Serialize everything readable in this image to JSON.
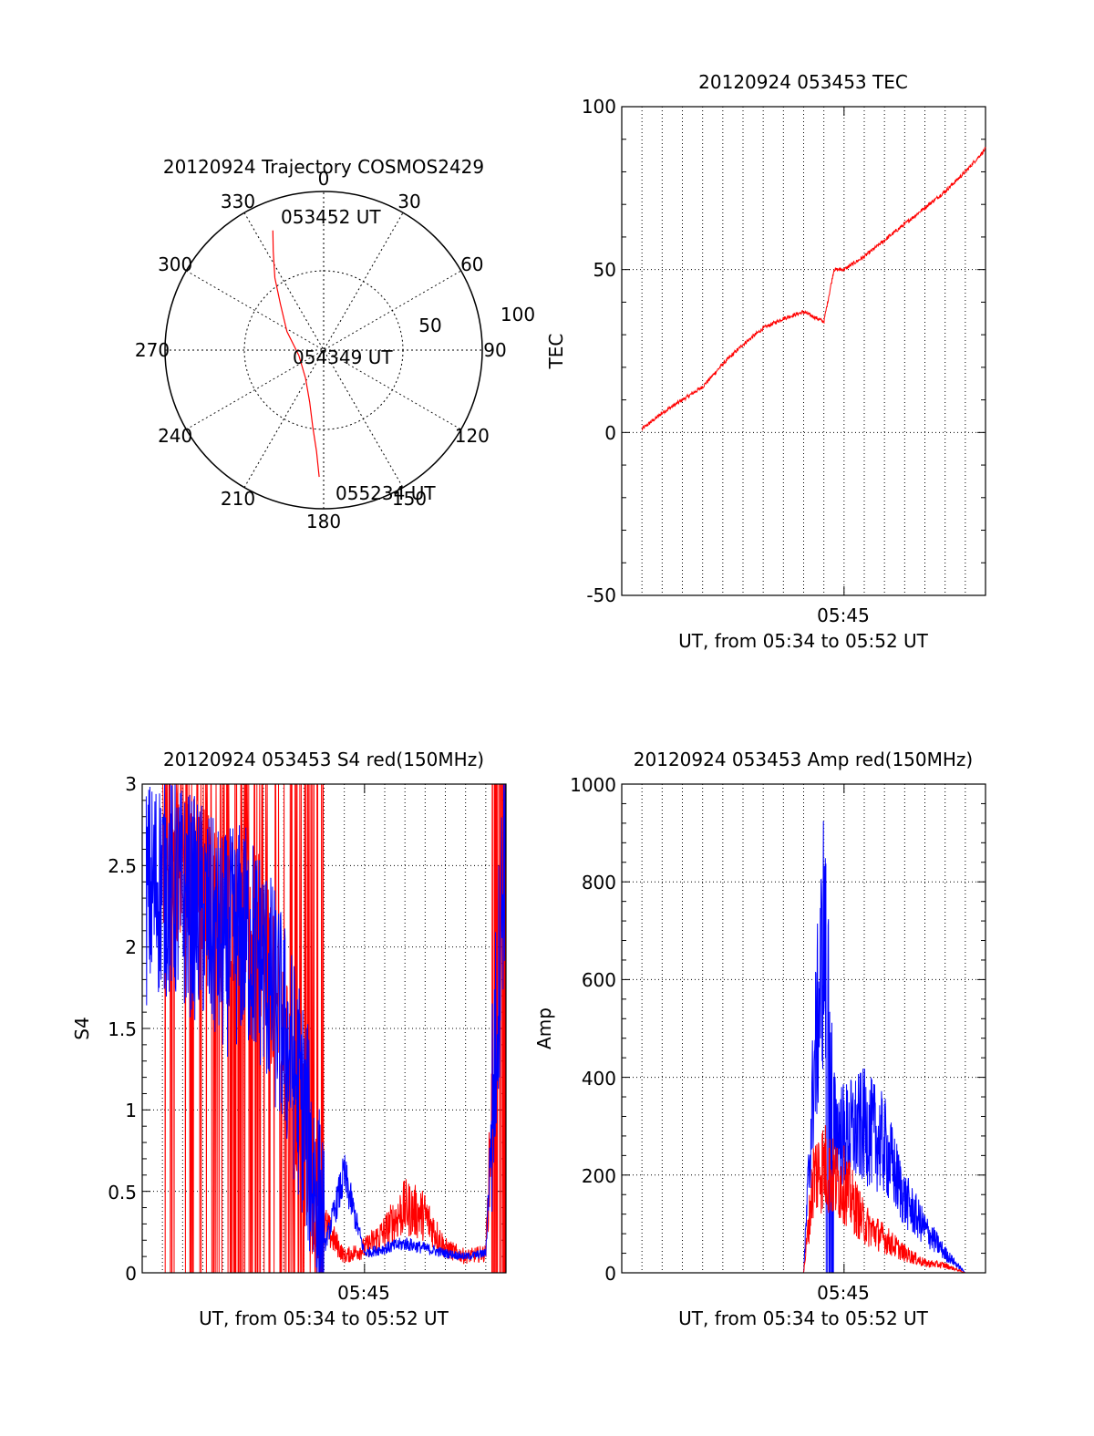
{
  "polar": {
    "title": "20120924 Trajectory COSMOS2429",
    "angle_labels": [
      "0",
      "30",
      "60",
      "90",
      "120",
      "150",
      "180",
      "210",
      "240",
      "270",
      "300",
      "330"
    ],
    "radius_labels": [
      "50",
      "100"
    ],
    "annotations": [
      "053452 UT",
      "054349 UT",
      "055234 UT"
    ],
    "trajectory": {
      "color": "#ff0000",
      "points": [
        {
          "az": 337,
          "zen": 82
        },
        {
          "az": 333,
          "zen": 70
        },
        {
          "az": 326,
          "zen": 55
        },
        {
          "az": 317,
          "zen": 40
        },
        {
          "az": 297,
          "zen": 26
        },
        {
          "az": 258,
          "zen": 16
        },
        {
          "az": 213,
          "zen": 21
        },
        {
          "az": 195,
          "zen": 34
        },
        {
          "az": 188,
          "zen": 49
        },
        {
          "az": 184,
          "zen": 64
        },
        {
          "az": 182,
          "zen": 80
        }
      ]
    }
  },
  "panels": [
    {
      "id": "tec",
      "title": "20120924 053453 TEC",
      "ylabel": "TEC",
      "xlabel": "UT, from 05:34 to 05:52 UT",
      "xtick_label": "05:45",
      "ytick_labels": [
        "-50",
        "0",
        "50",
        "100"
      ]
    },
    {
      "id": "s4",
      "title": "20120924 053453 S4 red(150MHz)",
      "ylabel": "S4",
      "xlabel": "UT, from 05:34 to 05:52 UT",
      "xtick_label": "05:45",
      "ytick_labels": [
        "0",
        "0.5",
        "1",
        "1.5",
        "2",
        "2.5",
        "3"
      ]
    },
    {
      "id": "amp",
      "title": "20120924 053453 Amp red(150MHz)",
      "ylabel": "Amp",
      "xlabel": "UT, from 05:34 to 05:52 UT",
      "xtick_label": "05:45",
      "ytick_labels": [
        "0",
        "200",
        "400",
        "600",
        "800",
        "1000"
      ]
    }
  ],
  "chart_data": [
    {
      "type": "scatter",
      "title": "20120924 Trajectory COSMOS2429",
      "coordinate_system": "polar",
      "angle_unit": "degrees azimuth",
      "radius_unit": "degrees zenith",
      "rlim": [
        0,
        100
      ],
      "grid": true,
      "series": [
        {
          "color": "#ff0000",
          "azimuth": [
            337,
            333,
            326,
            317,
            297,
            258,
            213,
            195,
            188,
            184,
            182
          ],
          "zenith": [
            82,
            70,
            55,
            40,
            26,
            16,
            21,
            34,
            49,
            64,
            80
          ]
        }
      ]
    },
    {
      "type": "line",
      "title": "20120924 053453 TEC",
      "xlabel": "UT, from 05:34 to 05:52 UT",
      "ylabel": "TEC",
      "ylim": [
        -50,
        100
      ],
      "grid": true,
      "x": [
        "05:35",
        "05:36",
        "05:37",
        "05:38",
        "05:39",
        "05:40",
        "05:41",
        "05:42",
        "05:43",
        "05:44",
        "05:44:30",
        "05:45",
        "05:46",
        "05:47",
        "05:48",
        "05:49",
        "05:50",
        "05:51",
        "05:52"
      ],
      "series": [
        {
          "color": "#ff0000",
          "values": [
            1,
            6,
            10,
            14,
            21,
            27,
            32,
            35,
            37,
            34,
            50,
            50,
            54,
            59,
            64,
            69,
            74,
            80,
            87
          ]
        }
      ]
    },
    {
      "type": "line",
      "title": "20120924 053453 S4 red(150MHz)",
      "xlabel": "UT, from 05:34 to 05:52 UT",
      "ylabel": "S4",
      "ylim": [
        0,
        3
      ],
      "grid": true,
      "x": [
        "05:34",
        "05:35",
        "05:36",
        "05:37",
        "05:38",
        "05:39",
        "05:40",
        "05:41",
        "05:42",
        "05:43",
        "05:44",
        "05:45",
        "05:46",
        "05:47",
        "05:48",
        "05:49",
        "05:50",
        "05:51",
        "05:52"
      ],
      "series": [
        {
          "color": "#ff0000",
          "values": [
            0.0,
            2.6,
            2.5,
            2.4,
            2.2,
            2.3,
            2.0,
            1.4,
            0.8,
            0.3,
            0.1,
            0.15,
            0.25,
            0.4,
            0.35,
            0.15,
            0.1,
            0.12,
            3.0
          ]
        },
        {
          "color": "#0000ff",
          "values": [
            2.3,
            2.4,
            2.3,
            2.2,
            2.0,
            2.1,
            1.9,
            1.5,
            1.0,
            0.15,
            0.6,
            0.12,
            0.15,
            0.18,
            0.15,
            0.12,
            0.1,
            0.12,
            2.8
          ]
        }
      ]
    },
    {
      "type": "line",
      "title": "20120924 053453 Amp red(150MHz)",
      "xlabel": "UT, from 05:34 to 05:52 UT",
      "ylabel": "Amp",
      "ylim": [
        0,
        1000
      ],
      "grid": true,
      "x": [
        "05:35",
        "05:36",
        "05:37",
        "05:38",
        "05:39",
        "05:40",
        "05:41",
        "05:42",
        "05:43",
        "05:43:30",
        "05:44",
        "05:44:30",
        "05:45",
        "05:46",
        "05:47",
        "05:48",
        "05:49",
        "05:50",
        "05:51",
        "05:52"
      ],
      "series": [
        {
          "color": "#ff0000",
          "values": [
            0,
            0,
            0,
            0,
            0,
            0,
            0,
            0,
            0,
            200,
            220,
            190,
            180,
            100,
            70,
            40,
            20,
            15,
            0,
            0
          ]
        },
        {
          "color": "#0000ff",
          "values": [
            0,
            0,
            0,
            0,
            0,
            0,
            0,
            0,
            0,
            400,
            700,
            300,
            280,
            300,
            260,
            150,
            90,
            40,
            0,
            0
          ]
        }
      ]
    }
  ]
}
